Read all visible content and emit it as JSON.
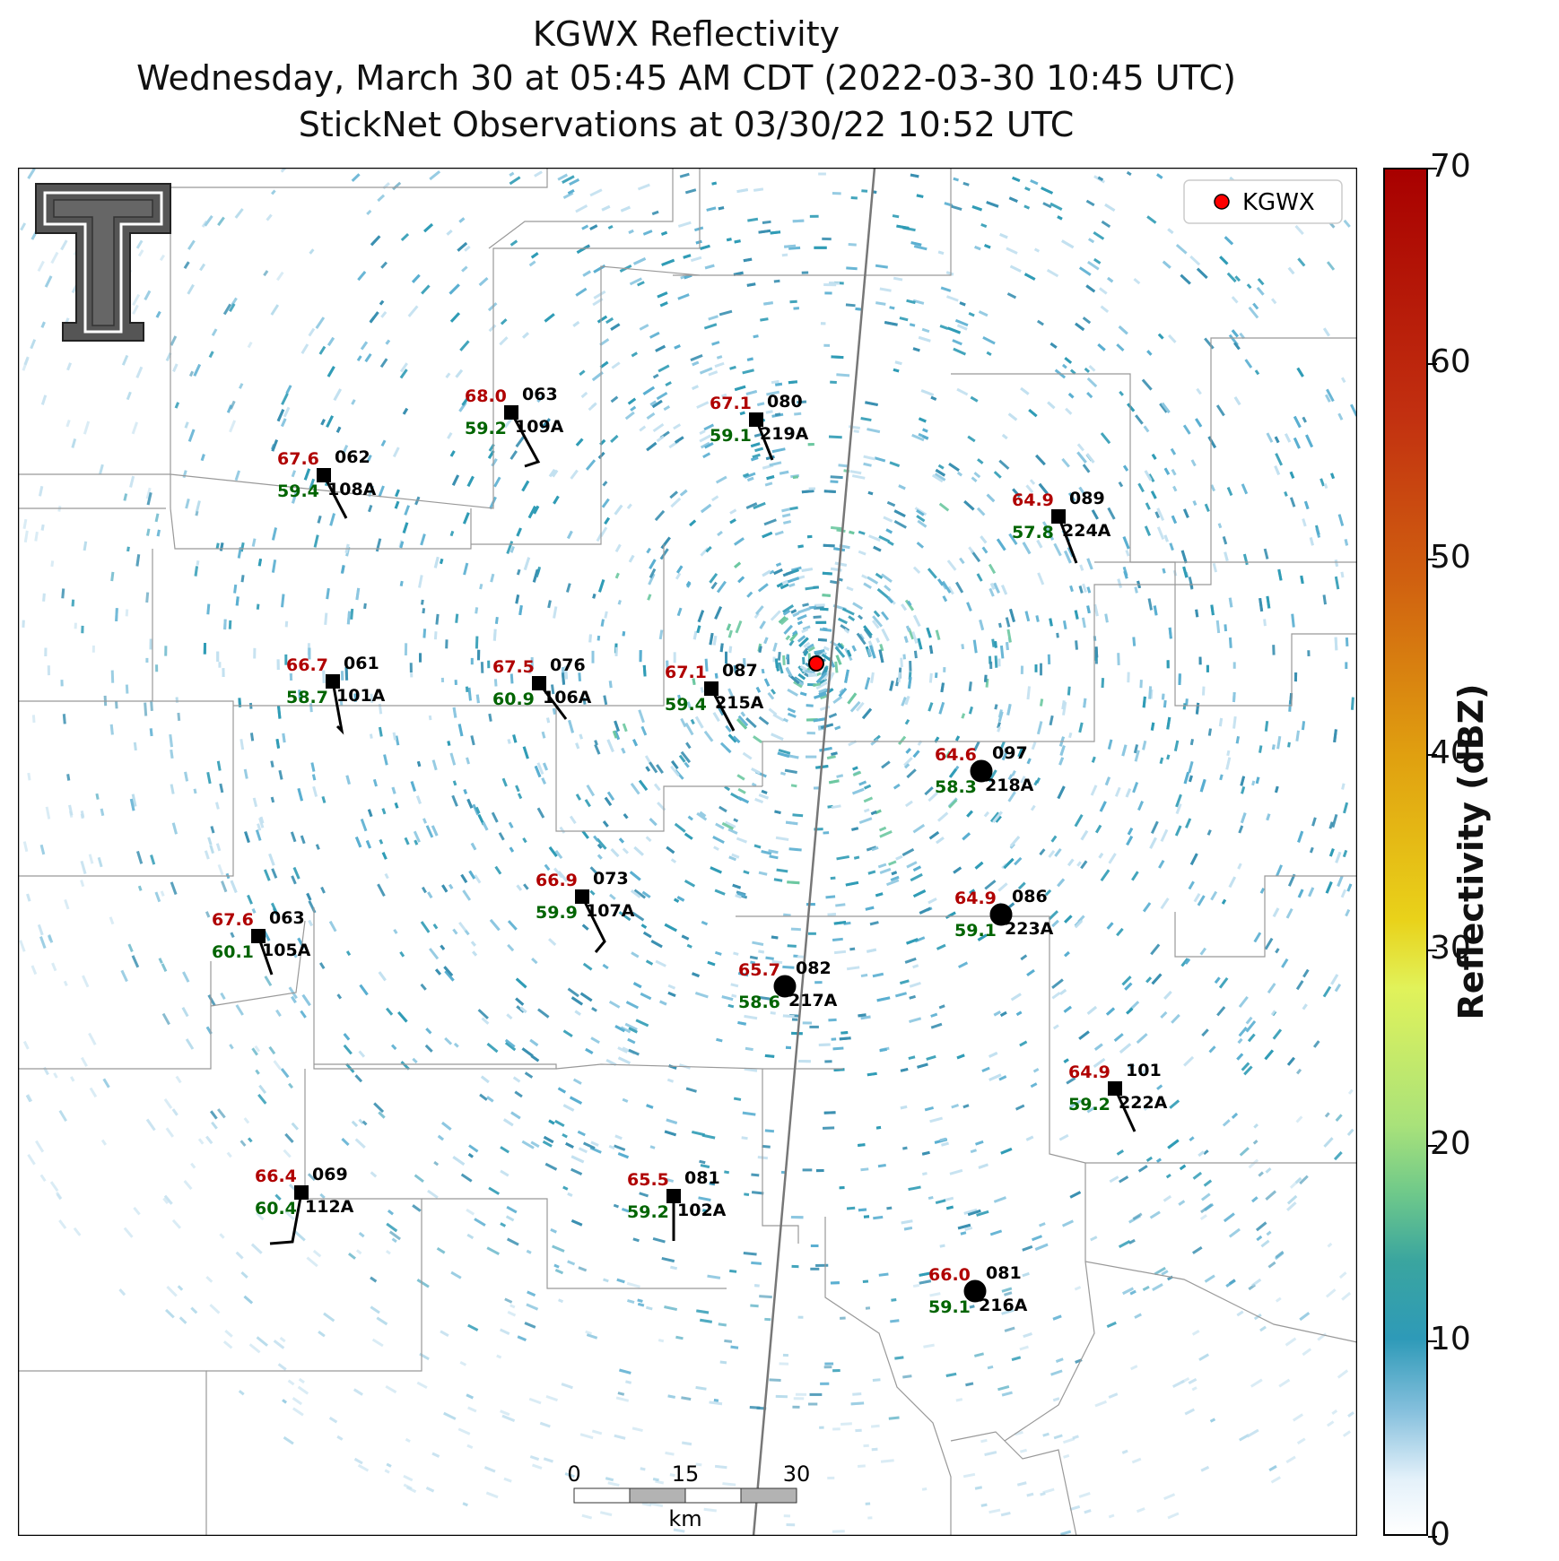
{
  "title": {
    "line1": "KGWX Reflectivity",
    "line2": "Wednesday, March 30 at 05:45 AM CDT (2022-03-30 10:45 UTC)",
    "line3": "StickNet Observations at 03/30/22 10:52 UTC"
  },
  "legend": {
    "label": "KGWX",
    "placement": "top-right"
  },
  "colorbar": {
    "label": "Reflectivity (dBZ)",
    "min": 0,
    "max": 70,
    "ticks": [
      "0",
      "10",
      "20",
      "30",
      "40",
      "50",
      "60",
      "70"
    ]
  },
  "scalebar": {
    "labels": [
      "0",
      "15",
      "30"
    ],
    "unit": "km"
  },
  "colors": {
    "temperature": "#b00000",
    "dewpoint": "#006400",
    "station": "#000000",
    "radar": "#ff0000"
  },
  "logo": {
    "name": "texas-tech-logo"
  },
  "stations": [
    {
      "id": "109A",
      "temp": "68.0",
      "dew": "59.2",
      "dir": "063",
      "marker": "square"
    },
    {
      "id": "219A",
      "temp": "67.1",
      "dew": "59.1",
      "dir": "080",
      "marker": "square"
    },
    {
      "id": "108A",
      "temp": "67.6",
      "dew": "59.4",
      "dir": "062",
      "marker": "square"
    },
    {
      "id": "224A",
      "temp": "64.9",
      "dew": "57.8",
      "dir": "089",
      "marker": "square"
    },
    {
      "id": "101A",
      "temp": "66.7",
      "dew": "58.7",
      "dir": "061",
      "marker": "square"
    },
    {
      "id": "106A",
      "temp": "67.5",
      "dew": "60.9",
      "dir": "076",
      "marker": "square"
    },
    {
      "id": "215A",
      "temp": "67.1",
      "dew": "59.4",
      "dir": "087",
      "marker": "square"
    },
    {
      "id": "218A",
      "temp": "64.6",
      "dew": "58.3",
      "dir": "097",
      "marker": "circle"
    },
    {
      "id": "107A",
      "temp": "66.9",
      "dew": "59.9",
      "dir": "073",
      "marker": "square"
    },
    {
      "id": "223A",
      "temp": "64.9",
      "dew": "59.1",
      "dir": "086",
      "marker": "circle"
    },
    {
      "id": "105A",
      "temp": "67.6",
      "dew": "60.1",
      "dir": "063",
      "marker": "square"
    },
    {
      "id": "217A",
      "temp": "65.7",
      "dew": "58.6",
      "dir": "082",
      "marker": "circle"
    },
    {
      "id": "222A",
      "temp": "64.9",
      "dew": "59.2",
      "dir": "101",
      "marker": "square"
    },
    {
      "id": "112A",
      "temp": "66.4",
      "dew": "60.4",
      "dir": "069",
      "marker": "square"
    },
    {
      "id": "102A",
      "temp": "65.5",
      "dew": "59.2",
      "dir": "081",
      "marker": "square"
    },
    {
      "id": "216A",
      "temp": "66.0",
      "dew": "59.1",
      "dir": "081",
      "marker": "circle"
    }
  ]
}
